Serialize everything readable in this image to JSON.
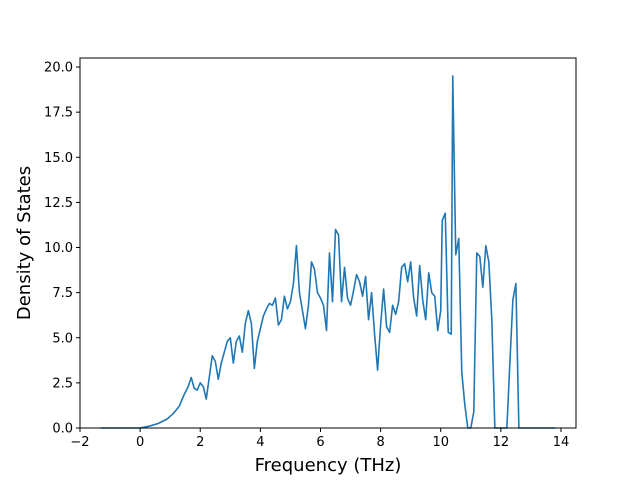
{
  "chart_data": {
    "type": "line",
    "title": "",
    "xlabel": "Frequency (THz)",
    "ylabel": "Density of States",
    "xlim": [
      -2,
      14.5
    ],
    "ylim": [
      0,
      20.5
    ],
    "x_ticks": [
      -2,
      0,
      2,
      4,
      6,
      8,
      10,
      12,
      14
    ],
    "x_tick_labels": [
      "−2",
      "0",
      "2",
      "4",
      "6",
      "8",
      "10",
      "12",
      "14"
    ],
    "y_ticks": [
      0,
      2.5,
      5,
      7.5,
      10,
      12.5,
      15,
      17.5,
      20
    ],
    "y_tick_labels": [
      "0.0",
      "2.5",
      "5.0",
      "7.5",
      "10.0",
      "12.5",
      "15.0",
      "17.5",
      "20.0"
    ],
    "grid": false,
    "legend": "none",
    "series": [
      {
        "color": "#1f77b4",
        "x": [
          -1.3,
          -1.0,
          -0.5,
          0.0,
          0.3,
          0.6,
          0.9,
          1.1,
          1.3,
          1.45,
          1.6,
          1.7,
          1.8,
          1.9,
          2.0,
          2.1,
          2.2,
          2.3,
          2.4,
          2.5,
          2.6,
          2.7,
          2.8,
          2.9,
          3.0,
          3.1,
          3.2,
          3.3,
          3.4,
          3.5,
          3.6,
          3.7,
          3.8,
          3.9,
          4.0,
          4.1,
          4.2,
          4.3,
          4.4,
          4.5,
          4.6,
          4.7,
          4.8,
          4.9,
          5.0,
          5.1,
          5.2,
          5.3,
          5.4,
          5.5,
          5.6,
          5.7,
          5.8,
          5.9,
          6.0,
          6.1,
          6.2,
          6.3,
          6.4,
          6.5,
          6.6,
          6.7,
          6.8,
          6.9,
          7.0,
          7.1,
          7.2,
          7.3,
          7.4,
          7.5,
          7.6,
          7.7,
          7.8,
          7.9,
          8.0,
          8.1,
          8.2,
          8.3,
          8.4,
          8.5,
          8.6,
          8.7,
          8.8,
          8.9,
          9.0,
          9.1,
          9.2,
          9.3,
          9.4,
          9.5,
          9.6,
          9.7,
          9.8,
          9.9,
          10.0,
          10.05,
          10.15,
          10.25,
          10.35,
          10.4,
          10.5,
          10.6,
          10.7,
          10.8,
          10.9,
          11.0,
          11.1,
          11.2,
          11.3,
          11.4,
          11.5,
          11.6,
          11.7,
          11.8,
          11.9,
          12.0,
          12.1,
          12.2,
          12.3,
          12.4,
          12.5,
          12.6,
          13.0,
          13.8
        ],
        "y": [
          0.0,
          0.0,
          0.0,
          0.0,
          0.1,
          0.25,
          0.5,
          0.8,
          1.2,
          1.8,
          2.3,
          2.8,
          2.2,
          2.1,
          2.5,
          2.3,
          1.6,
          2.8,
          4.0,
          3.7,
          2.7,
          3.6,
          4.2,
          4.8,
          5.0,
          3.6,
          4.8,
          5.1,
          4.2,
          5.8,
          6.5,
          5.8,
          3.3,
          4.8,
          5.5,
          6.2,
          6.6,
          6.9,
          6.8,
          7.2,
          5.7,
          6.0,
          7.3,
          6.6,
          7.0,
          8.0,
          10.1,
          7.5,
          6.5,
          5.5,
          6.8,
          9.2,
          8.8,
          7.5,
          7.2,
          6.8,
          5.4,
          9.7,
          7.0,
          11.0,
          10.7,
          7.0,
          8.9,
          7.2,
          6.8,
          7.6,
          8.5,
          8.1,
          7.3,
          8.4,
          6.0,
          7.5,
          5.2,
          3.2,
          5.7,
          7.7,
          5.6,
          5.3,
          6.8,
          6.3,
          7.0,
          8.9,
          9.1,
          8.1,
          9.2,
          7.2,
          6.2,
          9.0,
          7.1,
          6.0,
          8.6,
          7.5,
          7.3,
          5.4,
          6.5,
          11.5,
          11.9,
          5.3,
          5.2,
          19.5,
          9.6,
          10.5,
          3.1,
          1.3,
          0.0,
          0.0,
          0.9,
          9.7,
          9.5,
          7.8,
          10.1,
          9.2,
          6.0,
          0.0,
          0.0,
          0.0,
          0.0,
          0.0,
          3.6,
          7.1,
          8.0,
          0.0,
          0.0,
          0.0
        ]
      }
    ]
  }
}
